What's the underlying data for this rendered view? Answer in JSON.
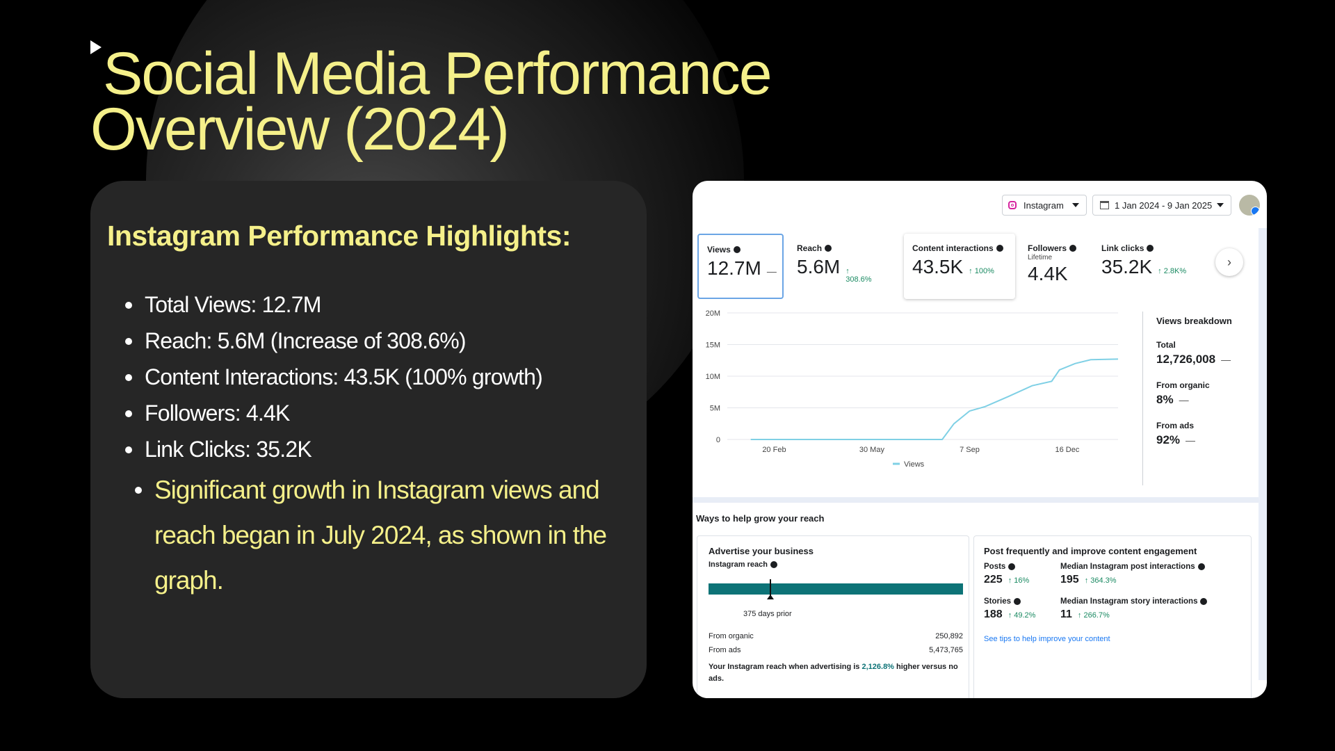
{
  "slide": {
    "title_line1": "Social Media Performance",
    "title_line2": "Overview (2024)",
    "card_heading": "Instagram Performance Highlights:",
    "bullets": [
      "Total Views: 12.7M",
      "Reach: 5.6M (Increase of 308.6%)",
      "Content Interactions: 43.5K (100% growth)",
      "Followers: 4.4K",
      "Link Clicks: 35.2K"
    ],
    "note": "Significant growth in Instagram views and reach began in July 2024, as shown in the graph."
  },
  "dashboard": {
    "platform": "Instagram",
    "date_range": "1 Jan 2024 - 9 Jan 2025",
    "metrics": [
      {
        "label": "Views",
        "value": "12.7M",
        "change": "—",
        "sub": ""
      },
      {
        "label": "Reach",
        "value": "5.6M",
        "change": "↑ 308.6%",
        "sub": ""
      },
      {
        "label": "Content interactions",
        "value": "43.5K",
        "change": "↑ 100%",
        "sub": ""
      },
      {
        "label": "Followers",
        "value": "4.4K",
        "change": "",
        "sub": "Lifetime"
      },
      {
        "label": "Link clicks",
        "value": "35.2K",
        "change": "↑ 2.8K%",
        "sub": ""
      }
    ],
    "breakdown": {
      "title": "Views breakdown",
      "total_label": "Total",
      "total_value": "12,726,008",
      "organic_label": "From organic",
      "organic_value": "8%",
      "ads_label": "From ads",
      "ads_value": "92%",
      "dash": "—"
    },
    "grow": {
      "title": "Ways to help grow your reach",
      "advertise": {
        "title": "Advertise your business",
        "sub": "Instagram reach",
        "days": "375 days prior",
        "organic_label": "From organic",
        "organic_value": "250,892",
        "ads_label": "From ads",
        "ads_value": "5,473,765",
        "text_before": "Your Instagram reach when advertising is ",
        "text_highlight": "2,126.8%",
        "text_after": " higher versus no ads."
      },
      "post": {
        "title": "Post frequently and improve content engagement",
        "posts_label": "Posts",
        "posts_value": "225",
        "posts_change": "↑ 16%",
        "median_post_label": "Median Instagram post interactions",
        "median_post_value": "195",
        "median_post_change": "↑ 364.3%",
        "stories_label": "Stories",
        "stories_value": "188",
        "stories_change": "↑ 49.2%",
        "median_story_label": "Median Instagram story interactions",
        "median_story_value": "11",
        "median_story_change": "↑ 266.7%",
        "tips": "See tips to help improve your content"
      }
    }
  },
  "chart_data": {
    "type": "line",
    "ylim": [
      0,
      20
    ],
    "y_ticks": [
      0,
      5,
      10,
      15,
      20
    ],
    "y_tick_labels": [
      "0",
      "5M",
      "10M",
      "15M",
      "20M"
    ],
    "x_tick_labels": [
      "20 Feb",
      "30 May",
      "7 Sep",
      "16 Dec"
    ],
    "legend": "Views",
    "series": [
      {
        "name": "Views",
        "color": "#7fd0e5",
        "x": [
          "1 Jan",
          "1 Jul",
          "3 Aug",
          "15 Aug",
          "1 Sep",
          "20 Sep",
          "10 Oct",
          "30 Oct",
          "18 Nov",
          "25 Nov",
          "10 Dec",
          "20 Dec",
          "9 Jan"
        ],
        "values": [
          0,
          0,
          0,
          2.5,
          4.5,
          5.2,
          6.8,
          8.5,
          9.2,
          11.0,
          12.0,
          12.6,
          12.7
        ]
      }
    ]
  }
}
